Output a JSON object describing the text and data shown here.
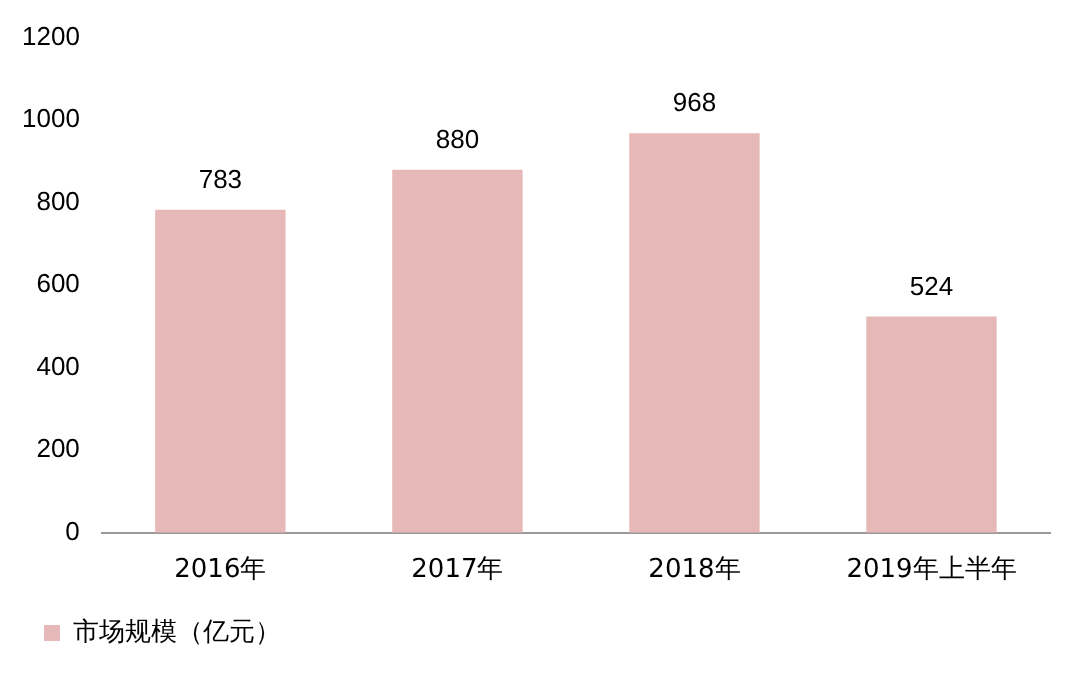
{
  "chart_data": {
    "type": "bar",
    "categories": [
      "2016年",
      "2017年",
      "2018年",
      "2019年上半年"
    ],
    "series": [
      {
        "name": "市场规模（亿元）",
        "color": "#e6b8b7",
        "values": [
          783,
          880,
          968,
          524
        ]
      }
    ],
    "ylim": [
      0,
      1200
    ],
    "yticks": [
      0,
      200,
      400,
      600,
      800,
      1000,
      1200
    ],
    "grid": false,
    "legend": "bottom",
    "data_labels": true
  }
}
